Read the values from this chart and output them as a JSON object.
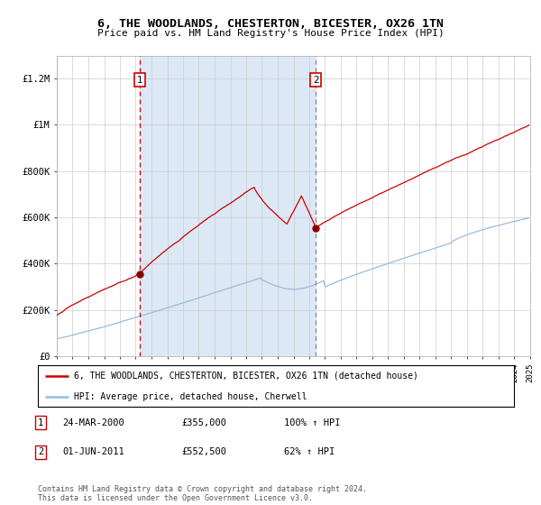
{
  "title": "6, THE WOODLANDS, CHESTERTON, BICESTER, OX26 1TN",
  "subtitle": "Price paid vs. HM Land Registry's House Price Index (HPI)",
  "background_color": "#ffffff",
  "shaded_region_color": "#dce8f5",
  "red_line_color": "#cc0000",
  "blue_line_color": "#99bbdd",
  "marker_color": "#880000",
  "grid_color": "#cccccc",
  "ylim": [
    0,
    1300000
  ],
  "yticks": [
    0,
    200000,
    400000,
    600000,
    800000,
    1000000,
    1200000
  ],
  "ytick_labels": [
    "£0",
    "£200K",
    "£400K",
    "£600K",
    "£800K",
    "£1M",
    "£1.2M"
  ],
  "legend_line1": "6, THE WOODLANDS, CHESTERTON, BICESTER, OX26 1TN (detached house)",
  "legend_line2": "HPI: Average price, detached house, Cherwell",
  "footnote": "Contains HM Land Registry data © Crown copyright and database right 2024.\nThis data is licensed under the Open Government Licence v3.0.",
  "table_row1": [
    "1",
    "24-MAR-2000",
    "£355,000",
    "100% ↑ HPI"
  ],
  "table_row2": [
    "2",
    "01-JUN-2011",
    "£552,500",
    "62% ↑ HPI"
  ],
  "date_p1": "2000-03-24",
  "date_p2": "2011-06-01",
  "price_p1": 355000,
  "price_p2": 552500
}
